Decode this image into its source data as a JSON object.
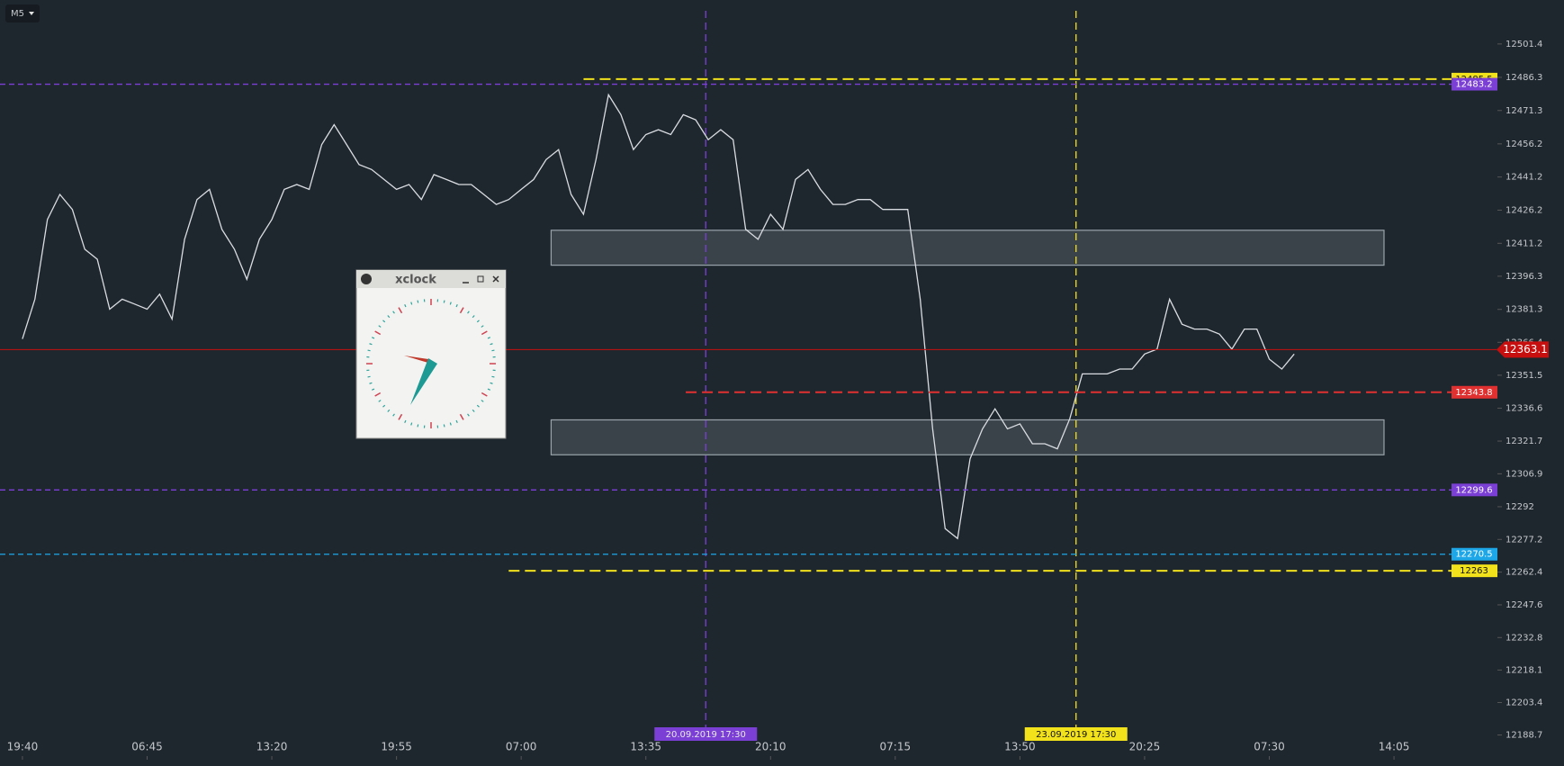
{
  "toolbar": {
    "timeframe": "M5"
  },
  "window": {
    "title": "xclock"
  },
  "chart_data": {
    "type": "line",
    "color": "#d9dde2",
    "values": [
      12367.9,
      12385.9,
      12422.0,
      12433.3,
      12426.5,
      12408.5,
      12404.0,
      12381.4,
      12385.9,
      12383.7,
      12381.4,
      12388.2,
      12376.9,
      12413.0,
      12431.0,
      12435.6,
      12417.5,
      12408.5,
      12394.9,
      12413.0,
      12422.0,
      12435.6,
      12437.8,
      12435.6,
      12455.9,
      12464.9,
      12455.9,
      12446.8,
      12444.6,
      12440.1,
      12435.6,
      12437.8,
      12431.0,
      12442.3,
      12440.1,
      12437.8,
      12437.8,
      12433.3,
      12428.8,
      12431.0,
      12435.6,
      12440.1,
      12449.1,
      12453.6,
      12433.3,
      12424.3,
      12449.1,
      12478.4,
      12469.4,
      12453.6,
      12460.4,
      12462.6,
      12460.4,
      12469.4,
      12467.1,
      12458.1,
      12462.6,
      12458.1,
      12417.5,
      12413.0,
      12424.3,
      12417.5,
      12440.1,
      12444.6,
      12435.6,
      12428.8,
      12428.8,
      12431.0,
      12431.0,
      12426.5,
      12426.5,
      12426.5,
      12385.9,
      12327.2,
      12282.1,
      12277.6,
      12313.7,
      12327.2,
      12336.3,
      12327.2,
      12329.5,
      12320.5,
      12320.5,
      12318.2,
      12331.8,
      12352.1,
      12352.1,
      12352.1,
      12354.3,
      12354.3,
      12361.1,
      12363.3,
      12385.9,
      12374.6,
      12372.4,
      12372.4,
      12370.1,
      12363.3,
      12372.4,
      12372.4,
      12358.8,
      12354.3,
      12361.1
    ],
    "xlim": [
      -1.8,
      118.8
    ],
    "xticks": [
      {
        "value": 0,
        "label": "19:40"
      },
      {
        "value": 10,
        "label": "06:45"
      },
      {
        "value": 20,
        "label": "13:20"
      },
      {
        "value": 30,
        "label": "19:55"
      },
      {
        "value": 40,
        "label": "07:00"
      },
      {
        "value": 50,
        "label": "13:35"
      },
      {
        "value": 60,
        "label": "20:10"
      },
      {
        "value": 70,
        "label": "07:15"
      },
      {
        "value": 80,
        "label": "13:50"
      },
      {
        "value": 90,
        "label": "20:25"
      },
      {
        "value": 100,
        "label": "07:30"
      },
      {
        "value": 110,
        "label": "14:05"
      }
    ],
    "ylim": [
      12187.3,
      12521.3
    ],
    "yticks": [
      12501.4,
      12486.3,
      12471.3,
      12456.2,
      12441.2,
      12426.2,
      12411.2,
      12396.3,
      12381.3,
      12366.4,
      12351.5,
      12336.6,
      12321.7,
      12306.9,
      12292.0,
      12277.2,
      12262.4,
      12247.6,
      12232.8,
      12218.1,
      12203.4,
      12188.7
    ],
    "grid": false,
    "levels": [
      {
        "value": 12485.5,
        "color": "#f2e21b",
        "x_start": 45.0
      },
      {
        "value": 12483.2,
        "color": "#7b3fd6"
      },
      {
        "value": 12343.8,
        "color": "#e03030",
        "x_start": 53.2
      },
      {
        "value": 12299.6,
        "color": "#7b3fd6"
      },
      {
        "value": 12270.5,
        "color": "#1ea7e8"
      },
      {
        "value": 12263.0,
        "color": "#f2e21b",
        "x_start": 39.0
      }
    ],
    "markers": [
      {
        "x": 54.8,
        "label": "20.09.2019 17:30",
        "color": "#7b3fd6"
      },
      {
        "x": 84.5,
        "label": "23.09.2019 17:30",
        "color": "#f2e21b"
      }
    ],
    "zones": [
      {
        "x": [
          42.4,
          109.2
        ],
        "y": [
          12401.3,
          12417.1
        ]
      },
      {
        "x": [
          42.4,
          109.2
        ],
        "y": [
          12315.5,
          12331.3
        ]
      }
    ],
    "last_price": {
      "value": 12363.1,
      "color": "#c80f0f"
    }
  }
}
